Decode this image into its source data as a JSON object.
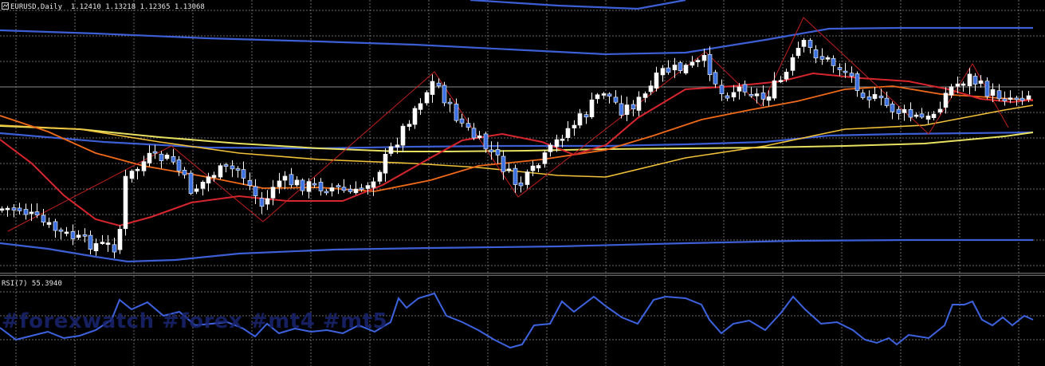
{
  "chart": {
    "symbol": "EURUSD",
    "timeframe": "Daily",
    "open": "1.12410",
    "high": "1.13218",
    "low": "1.12365",
    "close": "1.13068",
    "header_text": "EURUSD,Daily  1.12410 1.13218 1.12365 1.13068"
  },
  "indicator": {
    "label": "RSI(7) 55.3940",
    "name": "RSI",
    "period": 7,
    "value": 55.394
  },
  "watermark": "#forexwatch #forex #mt4 #mt5",
  "colors": {
    "background": "#000000",
    "grid": "#6b6b6b",
    "bull_candle": "#ffffff",
    "bear_candle": "#3b6fe0",
    "bollinger": "#3d5fd6",
    "ma_fast": "#d8262e",
    "ma_mid": "#f06a1a",
    "ma_slow": "#f2c23a",
    "ma_long": "#e8e060",
    "zigzag": "#c0201c",
    "rsi_line": "#3d63e0"
  },
  "icons": [
    "chart-icon"
  ]
}
